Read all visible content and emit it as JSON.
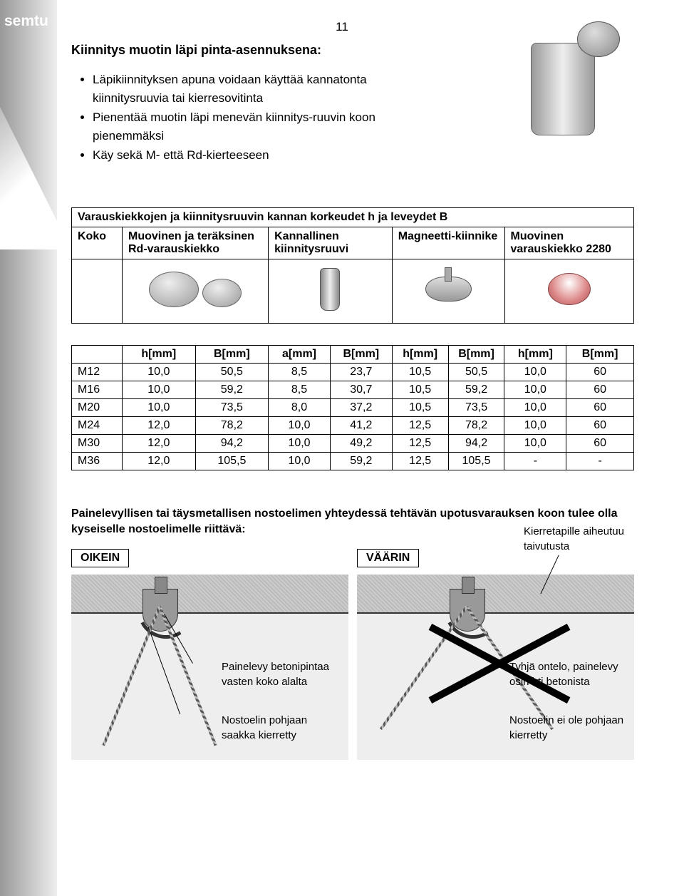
{
  "logo": "semtu",
  "page_number": "11",
  "heading": "Kiinnitys muotin läpi pinta-asennuksena:",
  "bullets": [
    "Läpikiinnityksen apuna voidaan käyttää kannatonta kiinnitysruuvia tai kierresovitinta",
    "Pienentää muotin läpi menevän kiinnitys-ruuvin koon pienemmäksi",
    "Käy sekä M- että Rd-kierteeseen"
  ],
  "table1": {
    "caption": "Varauskiekkojen ja kiinnitysruuvin kannan korkeudet h ja leveydet B",
    "cols": [
      "Koko",
      "Muovinen ja teräksinen Rd-varauskiekko",
      "Kannallinen kiinnitysruuvi",
      "Magneetti-kiinnike",
      "Muovinen varauskiekko 2280"
    ]
  },
  "table2": {
    "header": [
      "",
      "h[mm]",
      "B[mm]",
      "a[mm]",
      "B[mm]",
      "h[mm]",
      "B[mm]",
      "h[mm]",
      "B[mm]"
    ],
    "rows": [
      [
        "M12",
        "10,0",
        "50,5",
        "8,5",
        "23,7",
        "10,5",
        "50,5",
        "10,0",
        "60"
      ],
      [
        "M16",
        "10,0",
        "59,2",
        "8,5",
        "30,7",
        "10,5",
        "59,2",
        "10,0",
        "60"
      ],
      [
        "M20",
        "10,0",
        "73,5",
        "8,0",
        "37,2",
        "10,5",
        "73,5",
        "10,0",
        "60"
      ],
      [
        "M24",
        "12,0",
        "78,2",
        "10,0",
        "41,2",
        "12,5",
        "78,2",
        "10,0",
        "60"
      ],
      [
        "M30",
        "12,0",
        "94,2",
        "10,0",
        "49,2",
        "12,5",
        "94,2",
        "10,0",
        "60"
      ],
      [
        "M36",
        "12,0",
        "105,5",
        "10,0",
        "59,2",
        "12,5",
        "105,5",
        "-",
        "-"
      ]
    ]
  },
  "section2": {
    "intro": "Painelevyllisen tai täysmetallisen nostoelimen yhteydessä tehtävän upotusvarauksen koon tulee olla kyseiselle nostoelimelle riittävä:",
    "correct_label": "OIKEIN",
    "wrong_label": "VÄÄRIN",
    "correct_notes": [
      "Painelevy betonipintaa vasten koko alalta",
      "Nostoelin pohjaan saakka kierretty"
    ],
    "wrong_notes": [
      "Kierretapille aiheutuu taivutusta",
      "Tyhjä ontelo, painelevy osin irti betonista",
      "Nostoelin ei ole pohjaan kierretty"
    ]
  }
}
